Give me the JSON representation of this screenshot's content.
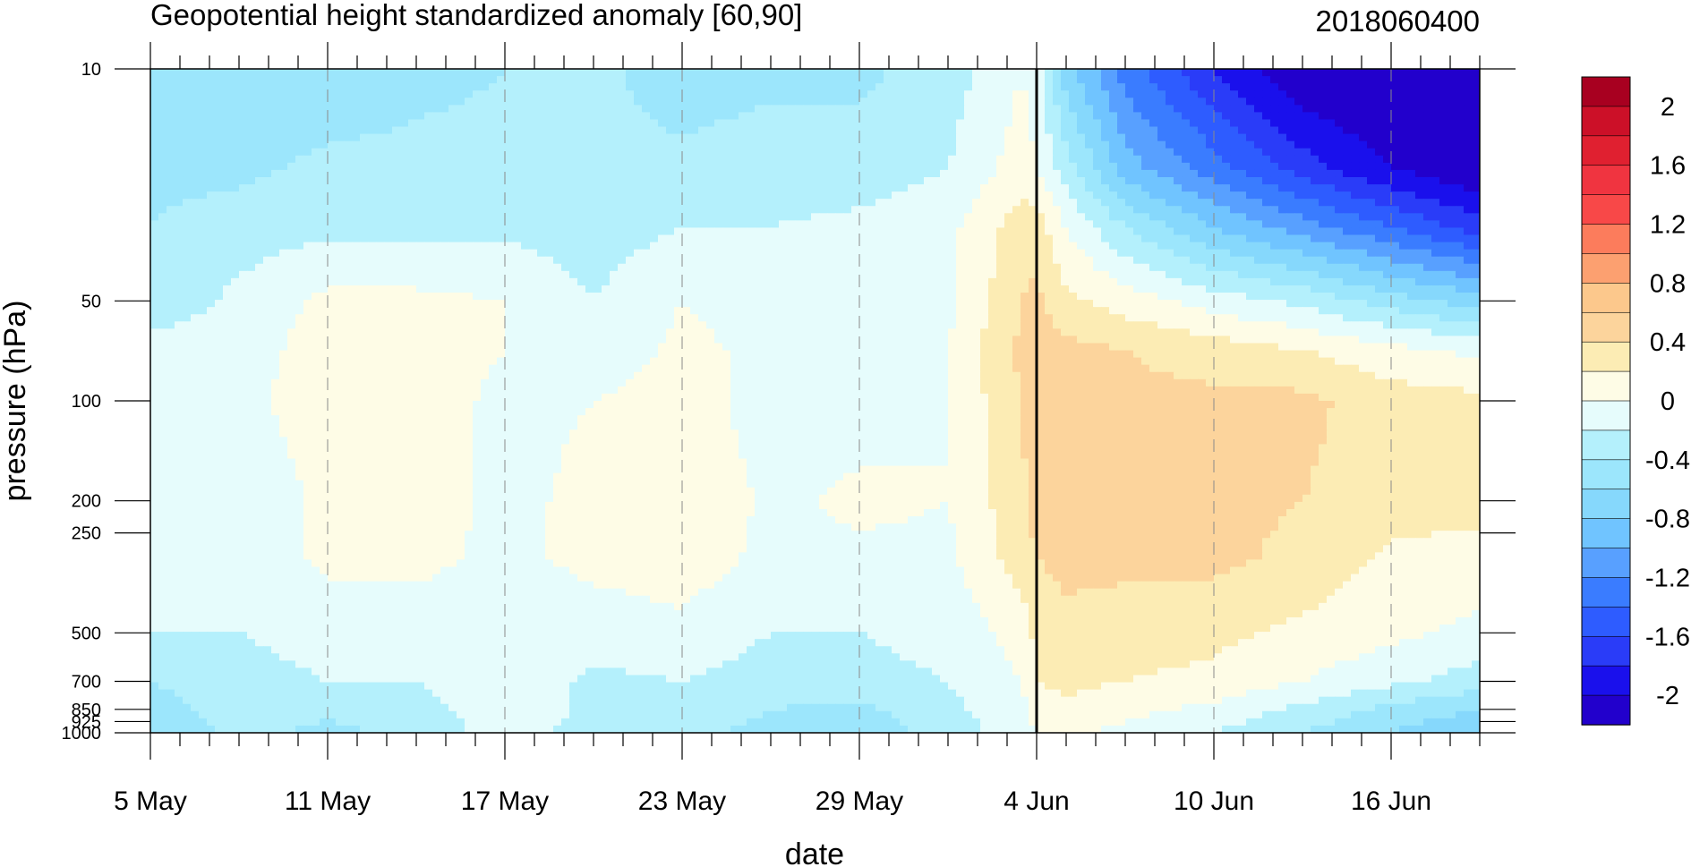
{
  "chart_data": {
    "type": "heatmap",
    "title": "Geopotential height standardized anomaly [60,90]",
    "subtitle": "2018060400",
    "xlabel": "date",
    "ylabel": "pressure (hPa)",
    "x_tick_labels": [
      "5 May",
      "11 May",
      "17 May",
      "23 May",
      "29 May",
      "4 Jun",
      "10 Jun",
      "16 Jun"
    ],
    "x_tick_days": [
      0,
      6,
      12,
      18,
      24,
      30,
      36,
      42
    ],
    "x_range_days": [
      0,
      45
    ],
    "y_scale": "log",
    "y_reversed": true,
    "y_range": [
      10,
      1000
    ],
    "y_ticks": [
      10,
      50,
      100,
      200,
      250,
      500,
      700,
      850,
      925,
      1000
    ],
    "y_tick_labels": [
      "10",
      "50",
      "100",
      "200",
      "250",
      "500",
      "700",
      "850",
      "925",
      "1000"
    ],
    "marker_date": "4 Jun",
    "grid": "dashed vertical lines at date ticks",
    "colorbar": {
      "position": "right",
      "labels": [
        "2",
        "1.6",
        "1.2",
        "0.8",
        "0.4",
        "0",
        "-0.4",
        "-0.8",
        "-1.2",
        "-1.6",
        "-2"
      ],
      "levels": [
        -2.2,
        -2.0,
        -1.8,
        -1.6,
        -1.4,
        -1.2,
        -1.0,
        -0.8,
        -0.6,
        -0.4,
        -0.2,
        0.0,
        0.2,
        0.4,
        0.6,
        0.8,
        1.0,
        1.2,
        1.4,
        1.6,
        1.8,
        2.0,
        2.2
      ],
      "colors": [
        "#2200cc",
        "#1a10ec",
        "#2a3cf8",
        "#2e5cff",
        "#3a7cff",
        "#58a0ff",
        "#70c4ff",
        "#86d8fc",
        "#9ce6fc",
        "#b4f0fc",
        "#e6fcfc",
        "#fefce6",
        "#fcecb4",
        "#fcd49c",
        "#fcc88c",
        "#fca070",
        "#fc7c5c",
        "#f84848",
        "#f03440",
        "#e02030",
        "#cc1028",
        "#a80020"
      ]
    },
    "field": {
      "days": [
        0,
        3,
        6,
        9,
        12,
        15,
        18,
        21,
        24,
        27,
        29.5,
        30,
        31,
        33,
        36,
        39,
        42,
        45
      ],
      "pressures_hPa": [
        10,
        20,
        30,
        50,
        70,
        100,
        200,
        300,
        500,
        700,
        850,
        1000
      ],
      "anomaly": [
        [
          -0.5,
          -0.5,
          -0.55,
          -0.45,
          -0.4,
          -0.35,
          -0.5,
          -0.45,
          -0.45,
          -0.3,
          0.0,
          -0.1,
          -0.7,
          -1.3,
          -1.8,
          -2.2,
          -2.3,
          -2.4
        ],
        [
          -0.45,
          -0.45,
          -0.35,
          -0.35,
          -0.35,
          -0.35,
          -0.35,
          -0.3,
          -0.3,
          -0.2,
          0.1,
          0.0,
          -0.3,
          -0.9,
          -1.3,
          -1.7,
          -2.0,
          -2.2
        ],
        [
          -0.4,
          -0.3,
          -0.25,
          -0.25,
          -0.25,
          -0.3,
          -0.2,
          -0.2,
          -0.15,
          -0.05,
          0.3,
          0.3,
          0.0,
          -0.4,
          -0.8,
          -1.1,
          -1.4,
          -1.7
        ],
        [
          -0.35,
          -0.15,
          0.05,
          0.05,
          0.0,
          -0.2,
          0.0,
          -0.1,
          -0.15,
          -0.05,
          0.4,
          0.45,
          0.25,
          0.1,
          -0.1,
          -0.25,
          -0.5,
          -0.7
        ],
        [
          -0.1,
          -0.1,
          0.1,
          0.1,
          0.0,
          -0.15,
          0.05,
          -0.05,
          -0.1,
          0.0,
          0.45,
          0.5,
          0.45,
          0.4,
          0.3,
          0.2,
          0.05,
          -0.05
        ],
        [
          -0.05,
          -0.05,
          0.1,
          0.1,
          -0.05,
          0.0,
          0.1,
          -0.1,
          -0.1,
          0.0,
          0.4,
          0.55,
          0.5,
          0.45,
          0.45,
          0.45,
          0.3,
          0.25
        ],
        [
          -0.1,
          -0.15,
          0.05,
          0.1,
          -0.05,
          0.05,
          0.2,
          -0.05,
          0.05,
          0.0,
          0.35,
          0.5,
          0.5,
          0.45,
          0.45,
          0.4,
          0.3,
          0.3
        ],
        [
          -0.15,
          -0.15,
          0.05,
          0.05,
          -0.05,
          0.05,
          0.1,
          -0.05,
          -0.05,
          -0.05,
          0.3,
          0.4,
          0.45,
          0.45,
          0.45,
          0.35,
          0.15,
          0.1
        ],
        [
          -0.2,
          -0.2,
          -0.15,
          -0.1,
          -0.15,
          -0.1,
          -0.05,
          -0.2,
          -0.2,
          -0.15,
          0.1,
          0.25,
          0.35,
          0.3,
          0.25,
          0.15,
          0.05,
          -0.05
        ],
        [
          -0.4,
          -0.25,
          -0.2,
          -0.2,
          -0.05,
          -0.25,
          -0.2,
          -0.3,
          -0.25,
          -0.2,
          0.0,
          0.2,
          0.25,
          0.2,
          0.15,
          0.0,
          -0.15,
          -0.3
        ],
        [
          -0.5,
          -0.3,
          -0.35,
          -0.3,
          -0.05,
          -0.25,
          -0.3,
          -0.4,
          -0.45,
          -0.25,
          -0.05,
          0.1,
          0.15,
          0.05,
          -0.05,
          -0.25,
          -0.45,
          -0.6
        ],
        [
          -0.55,
          -0.35,
          -0.45,
          -0.35,
          -0.1,
          -0.3,
          -0.35,
          -0.45,
          -0.55,
          -0.3,
          -0.1,
          0.0,
          0.05,
          -0.05,
          -0.2,
          -0.4,
          -0.6,
          -0.8
        ]
      ]
    }
  }
}
